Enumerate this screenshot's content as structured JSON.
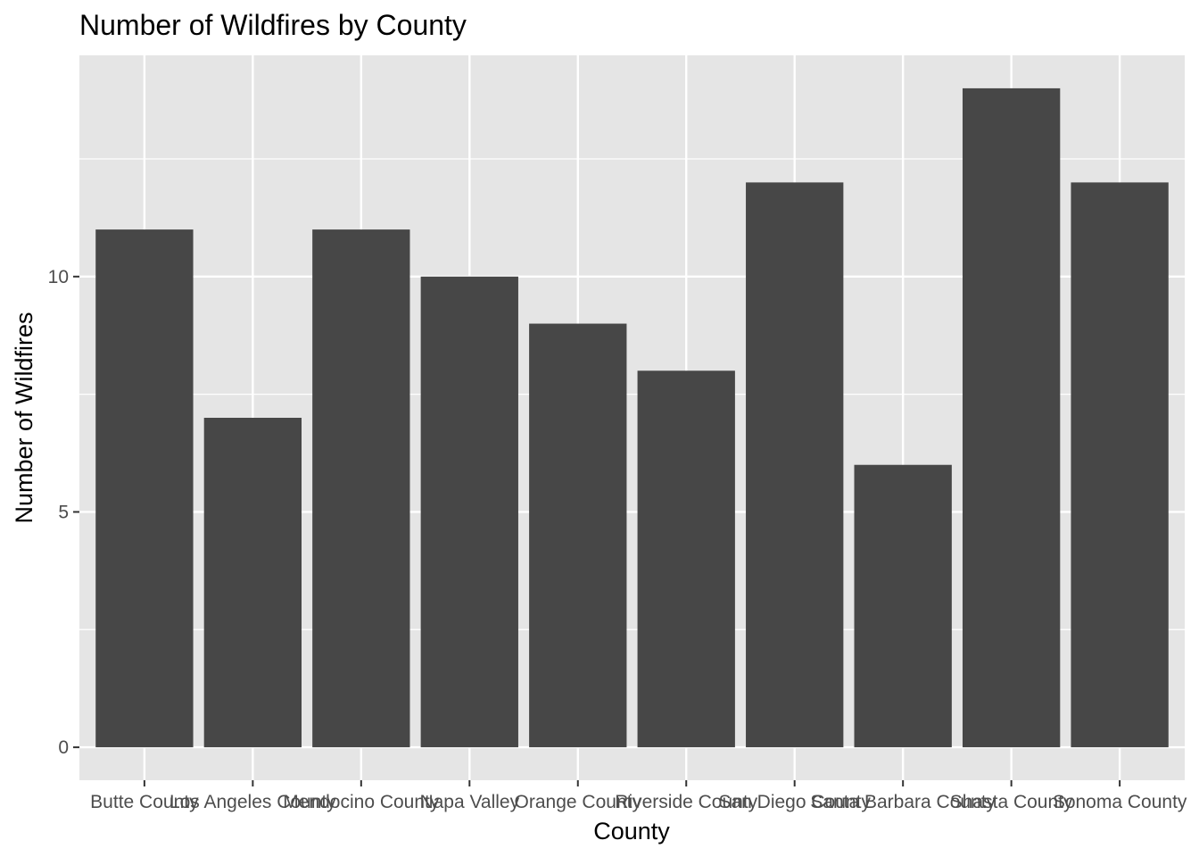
{
  "chart_data": {
    "type": "bar",
    "title": "Number of Wildfires by County",
    "xlabel": "County",
    "ylabel": "Number of Wildfires",
    "categories": [
      "Butte County",
      "Los Angeles County",
      "Mendocino County",
      "Napa Valley",
      "Orange County",
      "Riverside County",
      "San Diego County",
      "Santa Barbara County",
      "Shasta County",
      "Sonoma County"
    ],
    "values": [
      11,
      7,
      11,
      10,
      9,
      8,
      12,
      6,
      14,
      12
    ],
    "ylim": [
      -0.7,
      14.7
    ],
    "yticks": [
      0,
      5,
      10
    ],
    "ytick_labels": [
      "0",
      "5",
      "10"
    ],
    "grid": true,
    "legend": "none",
    "colors": {
      "bar": "#474747",
      "panel_background": "#e5e5e5",
      "grid_line": "#ffffff",
      "tick": "#333333"
    }
  }
}
